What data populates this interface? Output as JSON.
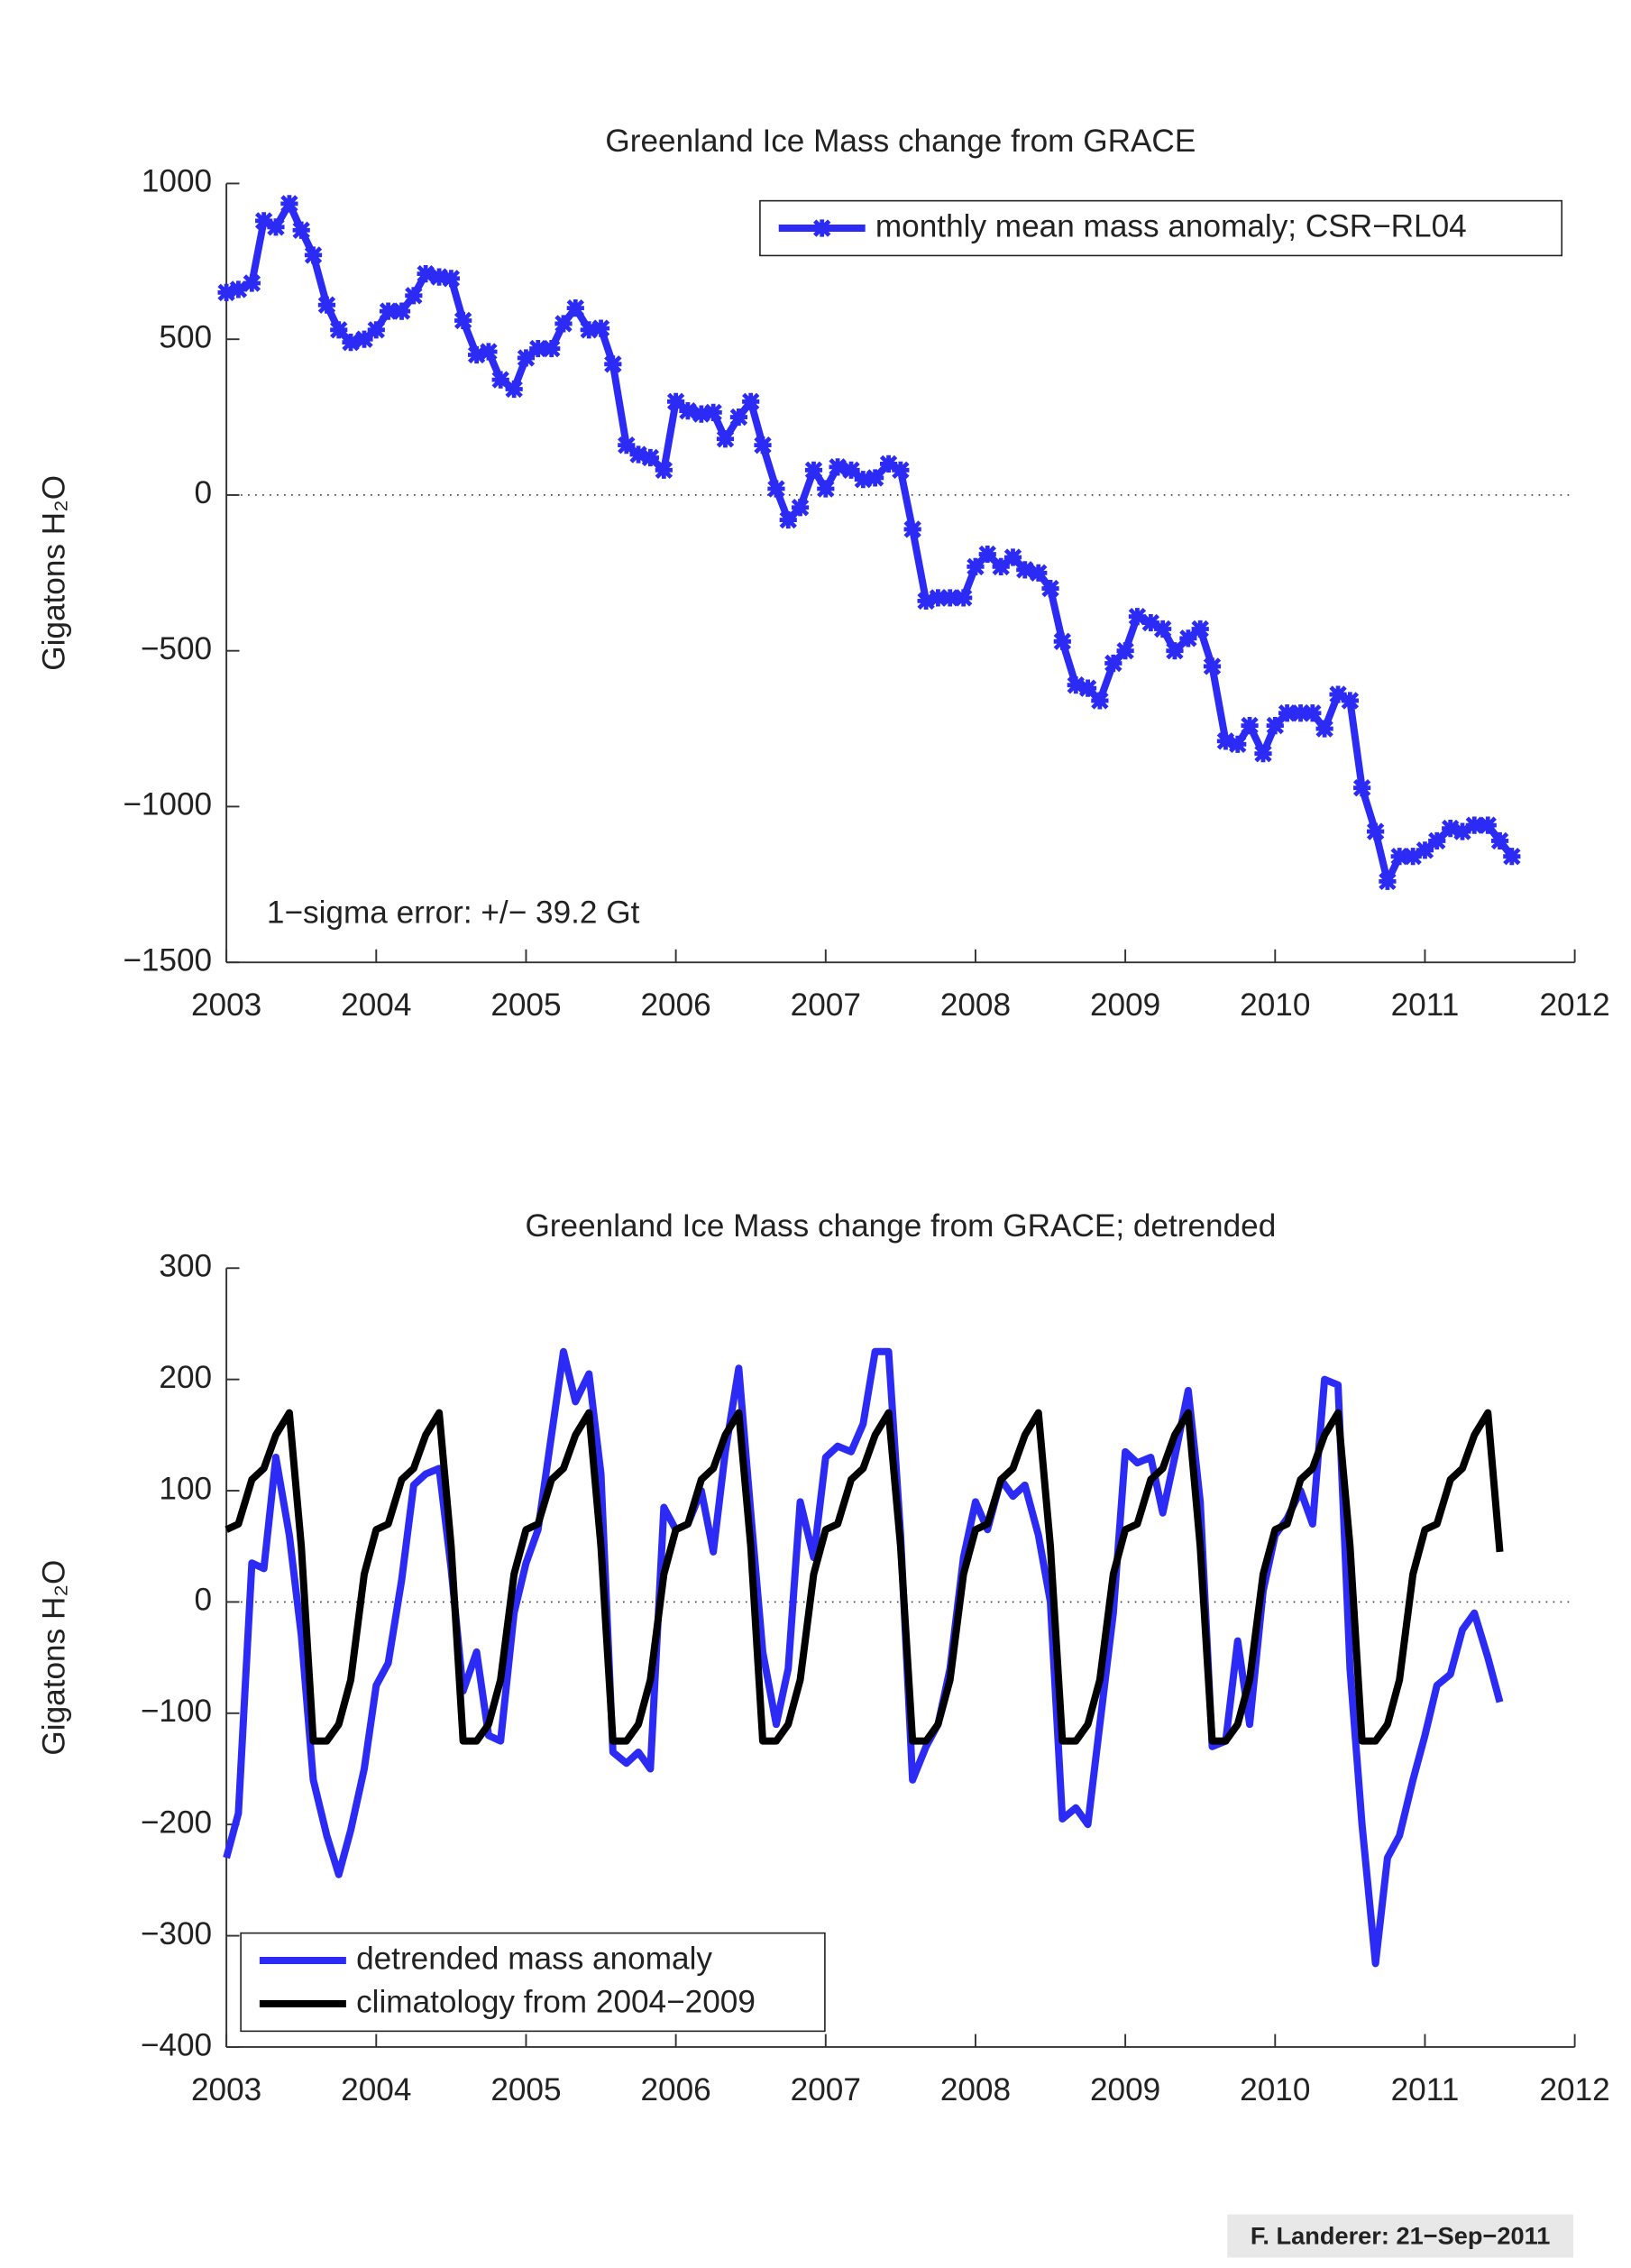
{
  "chart_data": [
    {
      "type": "line",
      "title": "Greenland Ice Mass change from GRACE",
      "ylabel": "Gigatons H₂O",
      "annotation": "1−sigma error: +/− 39.2 Gt",
      "legend": "upper right",
      "zero_line": true,
      "markers": true,
      "xlim": [
        2003,
        2012
      ],
      "xticks": [
        2003,
        2004,
        2005,
        2006,
        2007,
        2008,
        2009,
        2010,
        2011,
        2012
      ],
      "ylim": [
        -1500,
        1000
      ],
      "yticks": [
        {
          "value": -1500,
          "label": "−1500"
        },
        {
          "value": -1000,
          "label": "−1000"
        },
        {
          "value": -500,
          "label": "−500"
        },
        0,
        500,
        1000
      ],
      "x": [
        2003.0,
        2003.08,
        2003.17,
        2003.25,
        2003.33,
        2003.42,
        2003.5,
        2003.58,
        2003.67,
        2003.75,
        2003.83,
        2003.92,
        2004.0,
        2004.08,
        2004.17,
        2004.25,
        2004.33,
        2004.42,
        2004.5,
        2004.58,
        2004.67,
        2004.75,
        2004.83,
        2004.92,
        2005.0,
        2005.08,
        2005.17,
        2005.25,
        2005.33,
        2005.42,
        2005.5,
        2005.58,
        2005.67,
        2005.75,
        2005.83,
        2005.92,
        2006.0,
        2006.08,
        2006.17,
        2006.25,
        2006.33,
        2006.42,
        2006.5,
        2006.58,
        2006.67,
        2006.75,
        2006.83,
        2006.92,
        2007.0,
        2007.08,
        2007.17,
        2007.25,
        2007.33,
        2007.42,
        2007.5,
        2007.58,
        2007.67,
        2007.75,
        2007.83,
        2007.92,
        2008.0,
        2008.08,
        2008.17,
        2008.25,
        2008.33,
        2008.42,
        2008.5,
        2008.58,
        2008.67,
        2008.75,
        2008.83,
        2008.92,
        2009.0,
        2009.08,
        2009.17,
        2009.25,
        2009.33,
        2009.42,
        2009.5,
        2009.58,
        2009.67,
        2009.75,
        2009.83,
        2009.92,
        2010.0,
        2010.08,
        2010.17,
        2010.25,
        2010.33,
        2010.42,
        2010.5,
        2010.58,
        2010.67,
        2010.75,
        2010.83,
        2010.92,
        2011.0,
        2011.08,
        2011.17,
        2011.25,
        2011.33,
        2011.42,
        2011.5,
        2011.58
      ],
      "series": [
        {
          "name": "monthly mean mass anomaly; CSR−RL04",
          "color": "#2b2bf5",
          "values": [
            650,
            660,
            680,
            880,
            860,
            935,
            850,
            770,
            610,
            530,
            490,
            500,
            530,
            590,
            590,
            640,
            710,
            700,
            695,
            560,
            450,
            460,
            370,
            340,
            440,
            470,
            470,
            550,
            600,
            530,
            535,
            420,
            160,
            130,
            120,
            80,
            300,
            270,
            260,
            265,
            180,
            250,
            300,
            160,
            20,
            -80,
            -40,
            80,
            20,
            90,
            80,
            50,
            55,
            100,
            80,
            -110,
            -340,
            -330,
            -330,
            -330,
            -230,
            -190,
            -230,
            -200,
            -240,
            -250,
            -300,
            -470,
            -610,
            -620,
            -660,
            -540,
            -500,
            -390,
            -410,
            -430,
            -500,
            -460,
            -430,
            -550,
            -790,
            -800,
            -740,
            -830,
            -740,
            -700,
            -700,
            -700,
            -750,
            -640,
            -660,
            -940,
            -1080,
            -1240,
            -1160,
            -1160,
            -1140,
            -1110,
            -1070,
            -1080,
            -1060,
            -1060,
            -1110,
            -1160
          ]
        }
      ]
    },
    {
      "type": "line",
      "title": "Greenland Ice Mass change from GRACE; detrended",
      "ylabel": "Gigatons H₂O",
      "legend": "lower left",
      "zero_line": true,
      "markers": false,
      "xlim": [
        2003,
        2012
      ],
      "xticks": [
        2003,
        2004,
        2005,
        2006,
        2007,
        2008,
        2009,
        2010,
        2011,
        2012
      ],
      "ylim": [
        -400,
        300
      ],
      "yticks": [
        {
          "value": -400,
          "label": "−400"
        },
        {
          "value": -300,
          "label": "−300"
        },
        {
          "value": -200,
          "label": "−200"
        },
        {
          "value": -100,
          "label": "−100"
        },
        0,
        100,
        200,
        300
      ],
      "x": [
        2003.0,
        2003.08,
        2003.17,
        2003.25,
        2003.33,
        2003.42,
        2003.5,
        2003.58,
        2003.67,
        2003.75,
        2003.83,
        2003.92,
        2004.0,
        2004.08,
        2004.17,
        2004.25,
        2004.33,
        2004.42,
        2004.5,
        2004.58,
        2004.67,
        2004.75,
        2004.83,
        2004.92,
        2005.0,
        2005.08,
        2005.17,
        2005.25,
        2005.33,
        2005.42,
        2005.5,
        2005.58,
        2005.67,
        2005.75,
        2005.83,
        2005.92,
        2006.0,
        2006.08,
        2006.17,
        2006.25,
        2006.33,
        2006.42,
        2006.5,
        2006.58,
        2006.67,
        2006.75,
        2006.83,
        2006.92,
        2007.0,
        2007.08,
        2007.17,
        2007.25,
        2007.33,
        2007.42,
        2007.5,
        2007.58,
        2007.67,
        2007.75,
        2007.83,
        2007.92,
        2008.0,
        2008.08,
        2008.17,
        2008.25,
        2008.33,
        2008.42,
        2008.5,
        2008.58,
        2008.67,
        2008.75,
        2008.83,
        2008.92,
        2009.0,
        2009.08,
        2009.17,
        2009.25,
        2009.33,
        2009.42,
        2009.5,
        2009.58,
        2009.67,
        2009.75,
        2009.83,
        2009.92,
        2010.0,
        2010.08,
        2010.17,
        2010.25,
        2010.33,
        2010.42,
        2010.5,
        2010.58,
        2010.67,
        2010.75,
        2010.83,
        2010.92,
        2011.0,
        2011.08,
        2011.17,
        2011.25,
        2011.33,
        2011.42,
        2011.5
      ],
      "series": [
        {
          "name": "detrended mass anomaly",
          "color": "#2b2bf5",
          "values": [
            -230,
            -190,
            35,
            30,
            130,
            60,
            -30,
            -160,
            -210,
            -245,
            -205,
            -150,
            -75,
            -55,
            20,
            105,
            115,
            120,
            30,
            -80,
            -45,
            -120,
            -125,
            -10,
            35,
            65,
            150,
            225,
            180,
            205,
            115,
            -135,
            -145,
            -135,
            -150,
            85,
            65,
            70,
            100,
            45,
            135,
            210,
            80,
            -45,
            -110,
            -60,
            90,
            40,
            130,
            140,
            135,
            160,
            225,
            225,
            60,
            -160,
            -130,
            -110,
            -60,
            40,
            90,
            65,
            110,
            95,
            105,
            60,
            0,
            -195,
            -185,
            -200,
            -110,
            -10,
            135,
            125,
            130,
            80,
            130,
            190,
            90,
            -130,
            -125,
            -35,
            -110,
            10,
            60,
            75,
            100,
            70,
            200,
            195,
            -60,
            -200,
            -325,
            -230,
            -210,
            -160,
            -120,
            -75,
            -65,
            -25,
            -10,
            -50,
            -90
          ]
        },
        {
          "name": "climatology from 2004−2009",
          "color": "#000000",
          "values": [
            65,
            70,
            110,
            120,
            150,
            170,
            50,
            -125,
            -125,
            -110,
            -70,
            25,
            65,
            70,
            110,
            120,
            150,
            170,
            50,
            -125,
            -125,
            -110,
            -70,
            25,
            65,
            70,
            110,
            120,
            150,
            170,
            50,
            -125,
            -125,
            -110,
            -70,
            25,
            65,
            70,
            110,
            120,
            150,
            170,
            50,
            -125,
            -125,
            -110,
            -70,
            25,
            65,
            70,
            110,
            120,
            150,
            170,
            50,
            -125,
            -125,
            -110,
            -70,
            25,
            65,
            70,
            110,
            120,
            150,
            170,
            50,
            -125,
            -125,
            -110,
            -70,
            25,
            65,
            70,
            110,
            120,
            150,
            170,
            50,
            -125,
            -125,
            -110,
            -70,
            25,
            65,
            70,
            110,
            120,
            150,
            170,
            50,
            -125,
            -125,
            -110,
            -70,
            25,
            65,
            70,
            110,
            120,
            150,
            170,
            45
          ]
        }
      ]
    }
  ],
  "footer": "F. Landerer: 21−Sep−2011"
}
